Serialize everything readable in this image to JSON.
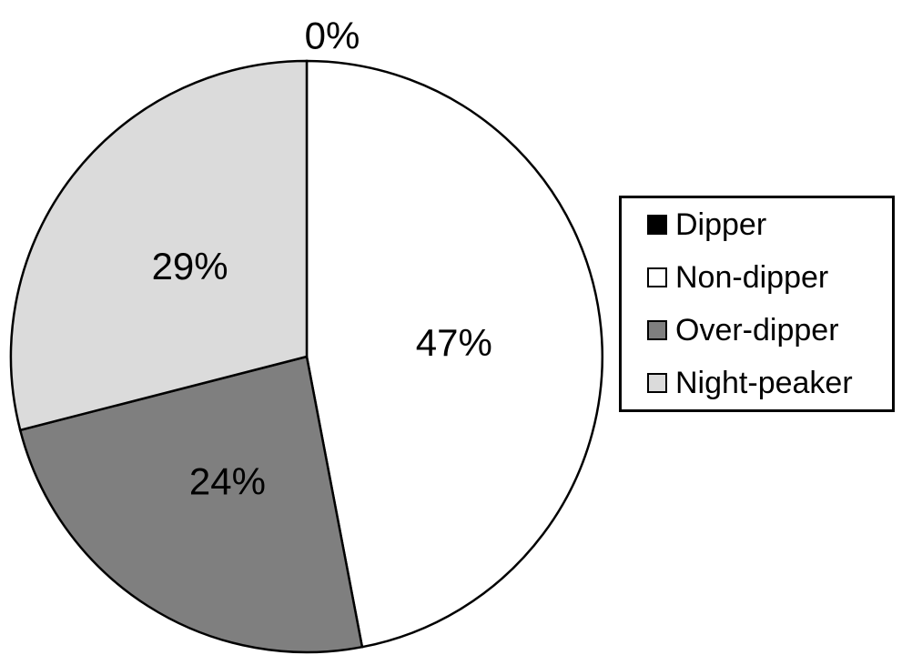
{
  "chart_data": {
    "type": "pie",
    "title": "",
    "legend_position": "right",
    "direction": "clockwise",
    "start_angle_deg": 0,
    "background_color": "#FFFFFF",
    "outline_color": "#000000",
    "label_color": "#000000",
    "segments": [
      {
        "label": "Dipper",
        "value": 0,
        "percent_label": "0%",
        "color": "#000000"
      },
      {
        "label": "Non-dipper",
        "value": 47,
        "percent_label": "47%",
        "color": "#FFFFFF"
      },
      {
        "label": "Over-dipper",
        "value": 24,
        "percent_label": "24%",
        "color": "#7F7F7F"
      },
      {
        "label": "Night-peaker",
        "value": 29,
        "percent_label": "29%",
        "color": "#DBDBDB"
      }
    ]
  }
}
